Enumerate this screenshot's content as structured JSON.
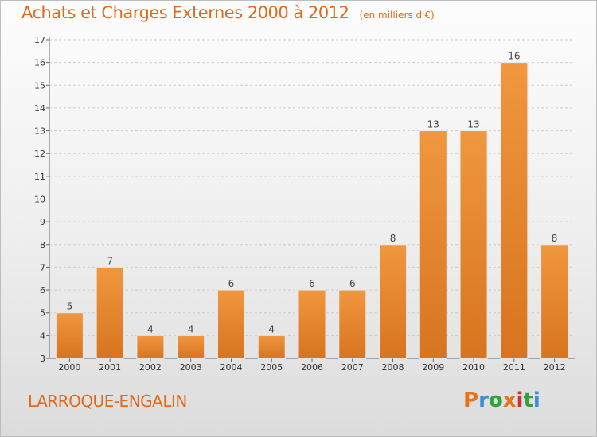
{
  "header": {
    "title": "Achats et Charges Externes 2000 à 2012",
    "unit": "(en milliers d'€)"
  },
  "footer": {
    "town": "LARROQUE-ENGALIN",
    "logo_text": "Proxiti",
    "logo_colors": [
      "#e8741a",
      "#3a8fd6",
      "#2fa23a",
      "#e8741a",
      "#d6302a",
      "#2fa23a",
      "#3a8fd6"
    ]
  },
  "colors": {
    "bar": "#f0973f",
    "bar_dark": "#d8741f",
    "axis": "#666666",
    "grid": "#cccccc",
    "accent": "#e06a1a"
  },
  "chart_data": {
    "type": "bar",
    "title": "Achats et Charges Externes 2000 à 2012",
    "subtitle": "(en milliers d'€)",
    "categories": [
      "2000",
      "2001",
      "2002",
      "2003",
      "2004",
      "2005",
      "2006",
      "2007",
      "2008",
      "2009",
      "2010",
      "2011",
      "2012"
    ],
    "values": [
      5,
      7,
      4,
      4,
      6,
      4,
      6,
      6,
      8,
      13,
      13,
      16,
      8
    ],
    "ylim": [
      3,
      17
    ],
    "yticks": [
      3,
      4,
      5,
      6,
      7,
      8,
      9,
      10,
      11,
      12,
      13,
      14,
      15,
      16,
      17
    ],
    "grid": true
  }
}
